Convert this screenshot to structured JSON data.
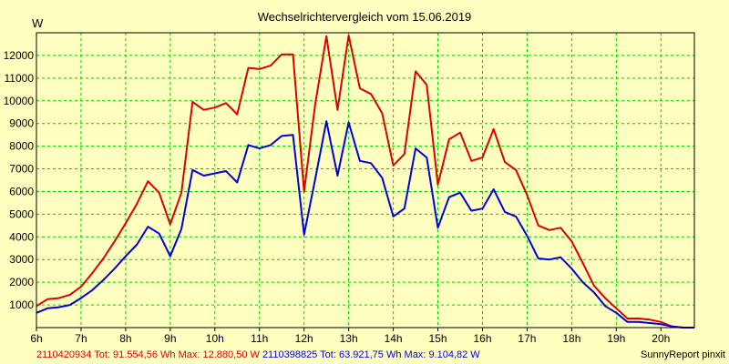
{
  "chart_data": {
    "type": "line",
    "title": "Wechselrichtervergleich vom 15.06.2019",
    "ylabel": "W",
    "xlabel": "",
    "xlim": [
      6,
      20.75
    ],
    "ylim": [
      0,
      13000
    ],
    "grid": true,
    "x_ticks": [
      6,
      7,
      8,
      9,
      10,
      11,
      12,
      13,
      14,
      15,
      16,
      17,
      18,
      19,
      20
    ],
    "x_tick_labels": [
      "6h",
      "7h",
      "8h",
      "9h",
      "10h",
      "11h",
      "12h",
      "13h",
      "14h",
      "15h",
      "16h",
      "17h",
      "18h",
      "19h",
      "20h"
    ],
    "y_ticks": [
      1000,
      2000,
      3000,
      4000,
      5000,
      6000,
      7000,
      8000,
      9000,
      10000,
      11000,
      12000
    ],
    "y_tick_labels": [
      "1000",
      "2000",
      "3000",
      "4000",
      "5000",
      "6000",
      "7000",
      "8000",
      "9000",
      "10000",
      "11000",
      "12000"
    ],
    "x": [
      6,
      6.25,
      6.5,
      6.75,
      7,
      7.25,
      7.5,
      7.75,
      8,
      8.25,
      8.5,
      8.75,
      9,
      9.25,
      9.5,
      9.75,
      10,
      10.25,
      10.5,
      10.75,
      11,
      11.25,
      11.5,
      11.75,
      12,
      12.25,
      12.5,
      12.75,
      13,
      13.25,
      13.5,
      13.75,
      14,
      14.25,
      14.5,
      14.75,
      15,
      15.25,
      15.5,
      15.75,
      16,
      16.25,
      16.5,
      16.75,
      17,
      17.25,
      17.5,
      17.75,
      18,
      18.25,
      18.5,
      18.75,
      19,
      19.25,
      19.5,
      19.75,
      20,
      20.25,
      20.5,
      20.75
    ],
    "series": [
      {
        "color": "#dd0000",
        "values": [
          950,
          1250,
          1300,
          1450,
          1800,
          2400,
          3050,
          3800,
          4600,
          5450,
          6450,
          5950,
          4550,
          5950,
          9950,
          9600,
          9700,
          9900,
          9400,
          11450,
          11400,
          11550,
          12050,
          12050,
          6000,
          9850,
          12850,
          9600,
          12880,
          10550,
          10300,
          9450,
          7150,
          7650,
          11300,
          10700,
          6300,
          8300,
          8600,
          7350,
          7500,
          8750,
          7300,
          6950,
          5850,
          4500,
          4300,
          4400,
          3800,
          2850,
          1850,
          1300,
          850,
          400,
          400,
          350,
          250,
          50,
          0,
          0
        ]
      },
      {
        "color": "#0000dd",
        "values": [
          650,
          850,
          900,
          1000,
          1300,
          1650,
          2100,
          2600,
          3150,
          3650,
          4450,
          4150,
          3150,
          4350,
          6950,
          6700,
          6800,
          6900,
          6400,
          8050,
          7900,
          8050,
          8450,
          8500,
          4100,
          6550,
          9100,
          6700,
          9050,
          7350,
          7250,
          6600,
          4900,
          5250,
          7900,
          7500,
          4400,
          5750,
          5950,
          5150,
          5250,
          6100,
          5100,
          4900,
          4050,
          3050,
          3000,
          3100,
          2600,
          2000,
          1550,
          950,
          650,
          250,
          250,
          200,
          150,
          50,
          0,
          0
        ]
      }
    ]
  },
  "legend": [
    {
      "id": "2110420934",
      "tot_label": "Tot:",
      "tot": "91.554,56 Wh",
      "max_label": "Max:",
      "max": "12.880,50 W",
      "color": "#dd0000"
    },
    {
      "id": "2110398825",
      "tot_label": "Tot:",
      "tot": "63.921,75 Wh",
      "max_label": "Max:",
      "max": "9.104,82 W",
      "color": "#0000dd"
    }
  ],
  "credit": "SunnyReport pinxit"
}
